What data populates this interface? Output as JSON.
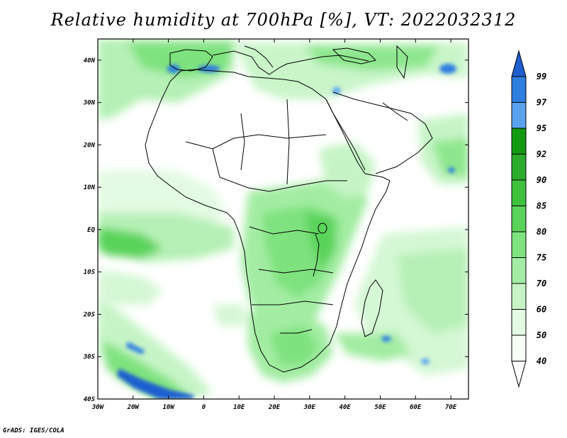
{
  "title": "Relative humidity at 700hPa [%], VT: 2022032312",
  "credit": "GrADS: IGES/COLA",
  "map": {
    "lon_ticks": [
      "30W",
      "20W",
      "10W",
      "0",
      "10E",
      "20E",
      "30E",
      "40E",
      "50E",
      "60E",
      "70E"
    ],
    "lat_ticks": [
      "40N",
      "30N",
      "20N",
      "10N",
      "EQ",
      "10S",
      "20S",
      "30S",
      "40S"
    ],
    "lon_range": [
      -30,
      75
    ],
    "lat_range": [
      -40,
      45
    ]
  },
  "colorbar": {
    "levels": [
      "99",
      "97",
      "95",
      "92",
      "90",
      "85",
      "80",
      "75",
      "70",
      "60",
      "50",
      "40"
    ],
    "colors": [
      "#1f5fd0",
      "#2f7ee0",
      "#5aa2ee",
      "#139a13",
      "#2cac2c",
      "#3ec23e",
      "#5ad35a",
      "#7ee27e",
      "#a3eca3",
      "#c6f4c6",
      "#e3fae3",
      "#f7fff7"
    ],
    "top_arrow_color": "#1f5fd0",
    "bottom_arrow_color": "#ffffff"
  }
}
